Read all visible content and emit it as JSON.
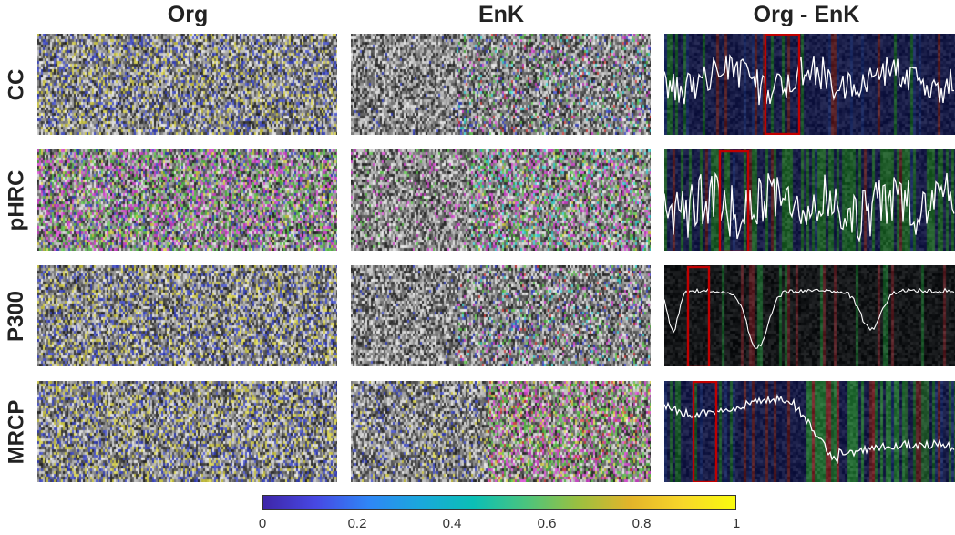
{
  "columns": [
    "Org",
    "EnK",
    "Org - EnK"
  ],
  "rows": [
    "CC",
    "pHRC",
    "P300",
    "MRCP"
  ],
  "highlight_color": "#c00000",
  "colorbar": {
    "colormap": "parula",
    "range": [
      0,
      1
    ],
    "ticks": [
      "0",
      "0.2",
      "0.4",
      "0.6",
      "0.8",
      "1"
    ]
  }
}
